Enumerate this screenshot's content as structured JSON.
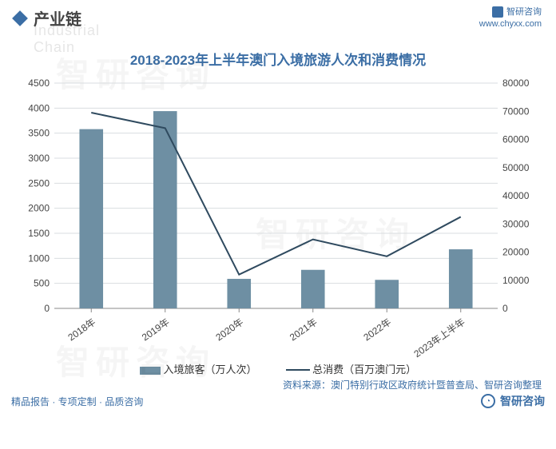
{
  "header": {
    "section_label": "产业链",
    "section_shadow": "Industrial Chain",
    "brand": "智研咨询",
    "brand_url": "www.chyxx.com"
  },
  "chart": {
    "type": "bar+line",
    "title": "2018-2023年上半年澳门入境旅游人次和消费情况",
    "categories": [
      "2018年",
      "2019年",
      "2020年",
      "2021年",
      "2022年",
      "2023年上半年"
    ],
    "series_bar": {
      "name": "入境旅客（万人次）",
      "values": [
        3580,
        3940,
        590,
        770,
        570,
        1180
      ],
      "color": "#6e8fa3",
      "bar_width": 0.32
    },
    "series_line": {
      "name": "总消费（百万澳门元）",
      "values": [
        69500,
        64000,
        12000,
        24500,
        18500,
        32500
      ],
      "color": "#2f4a5f",
      "line_width": 2
    },
    "left_axis": {
      "min": 0,
      "max": 4500,
      "step": 500
    },
    "right_axis": {
      "min": 0,
      "max": 80000,
      "step": 10000
    },
    "background_color": "#ffffff",
    "grid_color": "#d9dde0",
    "label_fontsize": 12,
    "title_fontsize": 17,
    "legend_fontsize": 13
  },
  "source": "资料来源：澳门特别行政区政府统计暨普查局、智研咨询整理",
  "footer": {
    "left": "精品报告 · 专项定制 · 品质咨询",
    "right": "智研咨询"
  },
  "watermark": "智研咨询"
}
